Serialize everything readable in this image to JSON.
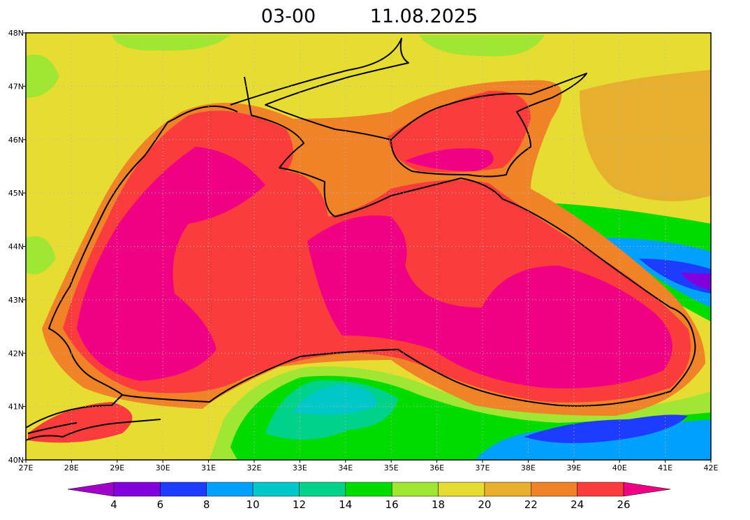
{
  "header": {
    "time": "03-00",
    "date": "11.08.2025"
  },
  "map": {
    "lat_labels": [
      "48N",
      "47N",
      "46N",
      "45N",
      "44N",
      "43N",
      "42N",
      "41N",
      "40N"
    ],
    "lon_labels": [
      "27E",
      "28E",
      "29E",
      "30E",
      "31E",
      "32E",
      "33E",
      "34E",
      "35E",
      "36E",
      "37E",
      "38E",
      "39E",
      "40E",
      "41E",
      "42E"
    ]
  },
  "colorbar": {
    "labels": [
      "4",
      "6",
      "8",
      "10",
      "12",
      "14",
      "16",
      "18",
      "20",
      "22",
      "24",
      "26"
    ],
    "colors": [
      "#a000c8",
      "#8200dc",
      "#1e3cff",
      "#00a0ff",
      "#00c8c8",
      "#00d28c",
      "#00dc00",
      "#a0e632",
      "#e6dc32",
      "#e6af2d",
      "#f08228",
      "#fa3c3c",
      "#f00082"
    ]
  }
}
